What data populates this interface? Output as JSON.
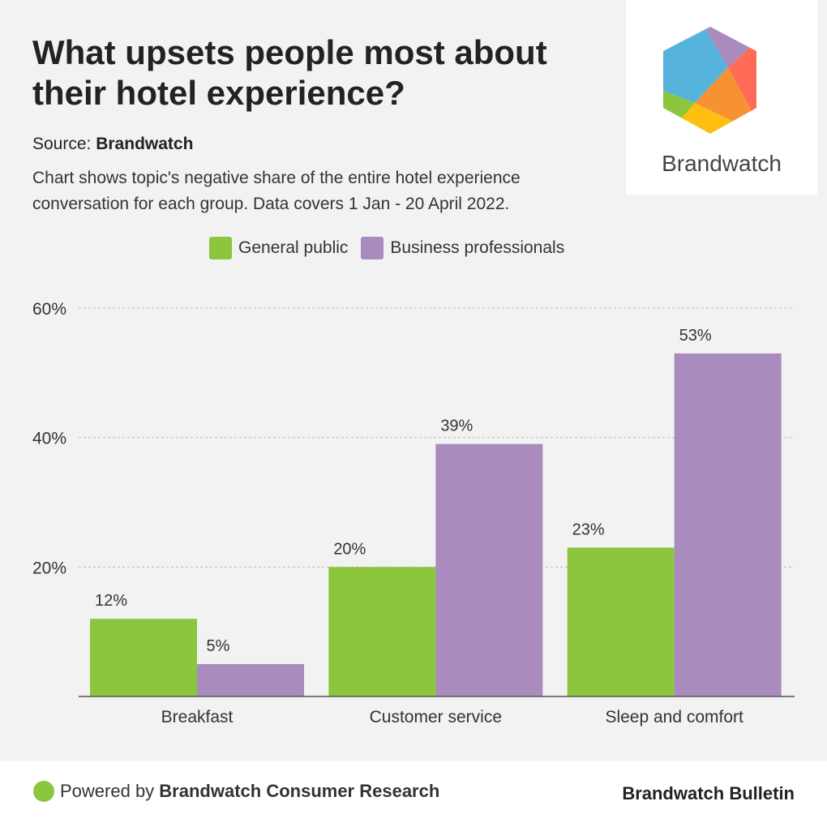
{
  "title": "What upsets people most about their hotel experience?",
  "source": {
    "label": "Source: ",
    "name": "Brandwatch"
  },
  "description": "Chart shows topic's negative share of the entire hotel experience conversation for each group. Data covers 1 Jan - 20 April 2022.",
  "logo": {
    "text": "Brandwatch"
  },
  "footer": {
    "powered_prefix": "Powered by ",
    "powered_name": "Brandwatch Consumer Research",
    "brand": "Brandwatch Bulletin"
  },
  "chart_data": {
    "type": "bar",
    "categories": [
      "Breakfast",
      "Customer service",
      "Sleep and comfort"
    ],
    "series": [
      {
        "name": "General public",
        "color": "#8cc63f",
        "values": [
          12,
          20,
          23
        ]
      },
      {
        "name": "Business professionals",
        "color": "#a98bbd",
        "values": [
          5,
          39,
          53
        ]
      }
    ],
    "yticks": [
      20,
      40,
      60
    ],
    "ytick_labels": [
      "20%",
      "40%",
      "60%"
    ],
    "ylim": [
      0,
      60
    ],
    "value_suffix": "%",
    "grid": true,
    "legend": "top-center"
  }
}
